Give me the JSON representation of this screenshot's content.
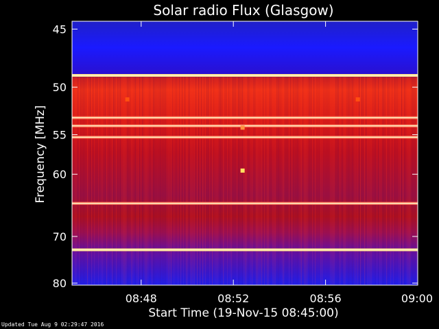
{
  "chart_data": {
    "type": "heatmap",
    "title": "Solar radio Flux (Glasgow)",
    "xlabel": "Start Time (19-Nov-15 08:45:00)",
    "ylabel": "Frequency [MHz]",
    "x_ticks": [
      "08:48",
      "08:52",
      "08:56",
      "09:00"
    ],
    "x_tick_minutes": [
      3,
      7,
      11,
      15
    ],
    "xlim_minutes": [
      0,
      15
    ],
    "y_ticks": [
      45,
      50,
      55,
      60,
      70,
      80
    ],
    "y_scale": "reciprocal",
    "ylim": [
      44.4,
      80.5
    ],
    "colormap": "blue-purple-red-yellow",
    "bright_bands_mhz": [
      48.9,
      53.1,
      54.0,
      55.3,
      64.3,
      72.6
    ],
    "bursts": [
      {
        "minute": 7.4,
        "mhz": 54.2,
        "level": 0.85
      },
      {
        "minute": 7.4,
        "mhz": 59.5,
        "level": 1.0
      },
      {
        "minute": 2.4,
        "mhz": 51.2,
        "level": 0.7
      },
      {
        "minute": 12.4,
        "mhz": 51.2,
        "level": 0.7
      }
    ],
    "colors": {
      "background": "#000000",
      "frame": "#ffffff",
      "low": "#1a1aff",
      "mid": "#8c0aa0",
      "high": "#e81010",
      "peak": "#ffe08a"
    }
  },
  "footer": "Updated Tue Aug  9 02:29:47 2016"
}
